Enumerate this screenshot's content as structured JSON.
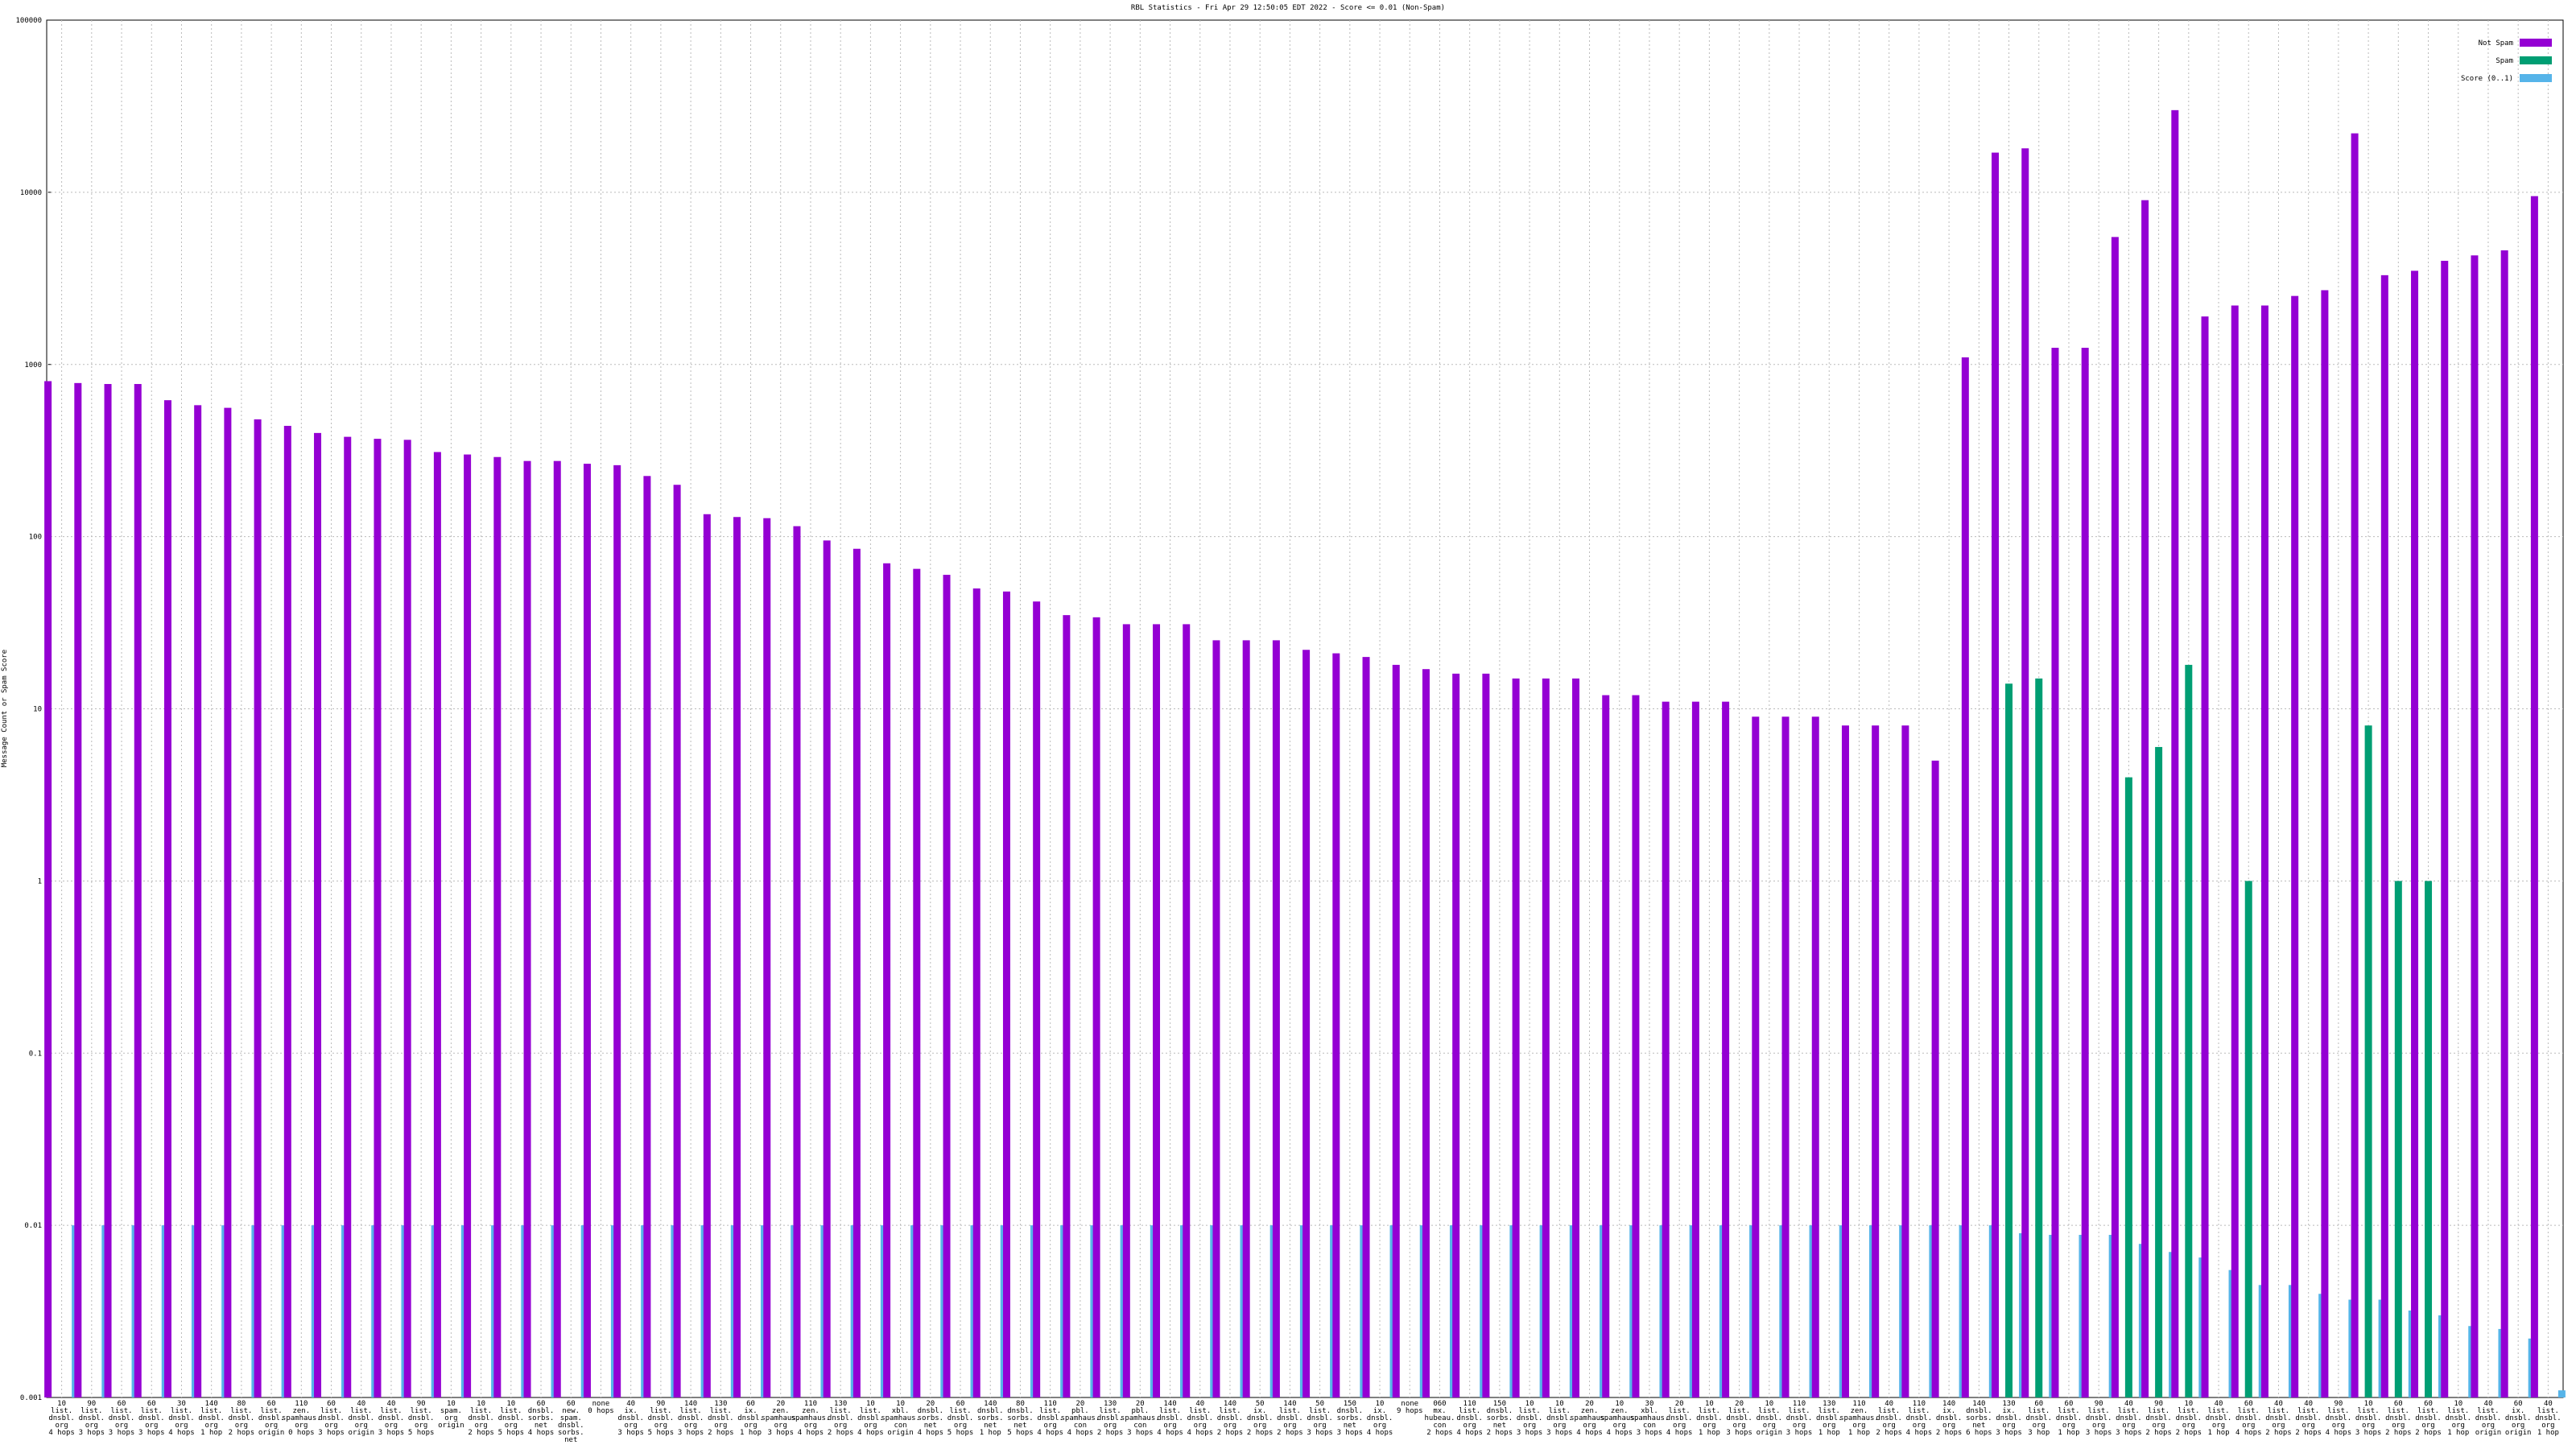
{
  "chart_data": {
    "type": "bar",
    "log_scale": true,
    "grid": true,
    "legend": "top-right",
    "title": "RBL Statistics - Fri Apr 29 12:50:05 EDT 2022 - Score <= 0.01 (Non-Spam)",
    "y_label": "Message Count or Spam Score",
    "ylim": [
      0.001,
      100000
    ],
    "yticks": [
      0.001,
      0.01,
      0.1,
      1,
      10,
      100,
      1000,
      10000,
      100000
    ],
    "categories": [
      "10\nlist.\ndnsbl.\norg\n4 hops",
      "90\nlist.\ndnsbl.\norg\n3 hops",
      "60\nlist.\ndnsbl.\norg\n3 hops",
      "60\nlist.\ndnsbl.\norg\n3 hops",
      "30\nlist.\ndnsbl.\norg\n4 hops",
      "140\nlist.\ndnsbl.\norg\n1 hop",
      "80\nlist.\ndnsbl.\norg\n2 hops",
      "60\nlist.\ndnsbl.\norg\norigin",
      "110\nzen.\nspamhaus.\norg\n0 hops",
      "60\nlist.\ndnsbl.\norg\n3 hops",
      "40\nlist.\ndnsbl.\norg\norigin",
      "40\nlist.\ndnsbl.\norg\n3 hops",
      "90\nlist.\ndnsbl.\norg\n5 hops",
      "10\nspam.\norg\norigin",
      "10\nlist.\ndnsbl.\norg\n2 hops",
      "10\nlist.\ndnsbl.\norg\n5 hops",
      "60\ndnsbl.\nsorbs.\nnet\n4 hops",
      "60\nnew.\nspam.\ndnsbl.\nsorbs.\nnet",
      "none\n0 hops",
      "40\nix.\ndnsbl.\norg\n3 hops",
      "90\nlist.\ndnsbl.\norg\n5 hops",
      "140\nlist.\ndnsbl.\norg\n3 hops",
      "130\nlist.\ndnsbl.\norg\n2 hops",
      "60\nix.\ndnsbl.\norg\n1 hop",
      "20\nzen.\nspamhaus.\norg\n3 hops",
      "110\nzen.\nspamhaus.\norg\n4 hops",
      "130\nlist.\ndnsbl.\norg\n2 hops",
      "10\nlist.\ndnsbl.\norg\n4 hops",
      "10\nxbl.\nspamhaus.\ncon\norigin",
      "20\ndnsbl.\nsorbs.\nnet\n4 hops",
      "60\nlist.\ndnsbl.\norg\n5 hops",
      "140\ndnsbl.\nsorbs.\nnet\n1 hop",
      "80\ndnsbl.\nsorbs.\nnet\n5 hops",
      "110\nlist.\ndnsbl.\norg\n4 hops",
      "20\npbl.\nspamhaus.\ncon\n4 hops",
      "130\nlist.\ndnsbl.\norg\n2 hops",
      "20\npbl.\nspamhaus.\ncon\n3 hops",
      "140\nlist.\ndnsbl.\norg\n4 hops",
      "40\nlist.\ndnsbl.\norg\n4 hops",
      "140\nlist.\ndnsbl.\norg\n2 hops",
      "50\nix.\ndnsbl.\norg\n2 hops",
      "140\nlist.\ndnsbl.\norg\n2 hops",
      "50\nlist.\ndnsbl.\norg\n3 hops",
      "150\ndnsbl.\nsorbs.\nnet\n3 hops",
      "10\nix.\ndnsbl.\norg\n4 hops",
      "none\n9 hops",
      "060\nmx.\nhubeau.\ncon\n2 hops",
      "110\nlist.\ndnsbl.\norg\n4 hops",
      "150\ndnsbl.\nsorbs.\nnet\n2 hops",
      "10\nlist.\ndnsbl.\norg\n3 hops",
      "10\nlist.\ndnsbl.\norg\n3 hops",
      "20\nzen.\nspamhaus.\norg\n4 hops",
      "10\nzen.\nspamhaus.\norg\n4 hops",
      "30\nxbl.\nspamhaus.\ncon\n3 hops",
      "20\nlist.\ndnsbl.\norg\n4 hops",
      "10\nlist.\ndnsbl.\norg\n1 hop",
      "20\nlist.\ndnsbl.\norg\n3 hops",
      "10\nlist.\ndnsbl.\norg\norigin",
      "110\nlist.\ndnsbl.\norg\n3 hops",
      "130\nlist.\ndnsbl.\norg\n1 hop",
      "110\nzen.\nspamhaus.\norg\n1 hop",
      "40\nlist.\ndnsbl.\norg\n2 hops",
      "110\nlist.\ndnsbl.\norg\n4 hops",
      "140\nix.\ndnsbl.\norg\n2 hops",
      "140\ndnsbl.\nsorbs.\nnet\n6 hops",
      "130\nix.\ndnsbl.\norg\n3 hops",
      "60\nlist.\ndnsbl.\norg\n3 hop",
      "60\nlist.\ndnsbl.\norg\n1 hop",
      "90\nlist.\ndnsbl.\norg\n3 hops",
      "40\nlist.\ndnsbl.\norg\n3 hops",
      "90\nlist.\ndnsbl.\norg\n2 hops",
      "10\nlist.\ndnsbl.\norg\n2 hops",
      "40\nlist.\ndnsbl.\norg\n1 hop",
      "60\nlist.\ndnsbl.\norg\n4 hops",
      "40\nlist.\ndnsbl.\norg\n2 hops",
      "40\nlist.\ndnsbl.\norg\n2 hops",
      "90\nlist.\ndnsbl.\norg\n4 hops",
      "10\nlist.\ndnsbl.\norg\n3 hops",
      "60\nlist.\ndnsbl.\norg\n2 hops",
      "60\nlist.\ndnsbl.\norg\n2 hops",
      "10\nlist.\ndnsbl.\norg\n1 hop",
      "40\nlist.\ndnsbl.\norg\norigin",
      "60\nix.\ndnsbl.\norg\norigin",
      "40\nlist.\ndnsbl.\norg\n1 hop"
    ],
    "series": [
      {
        "name": "Not Spam",
        "color": "#9400d3",
        "values": [
          800,
          780,
          770,
          770,
          620,
          580,
          560,
          480,
          440,
          400,
          380,
          370,
          365,
          310,
          300,
          290,
          275,
          275,
          265,
          260,
          225,
          200,
          135,
          130,
          128,
          115,
          95,
          85,
          70,
          65,
          60,
          50,
          48,
          42,
          35,
          34,
          31,
          31,
          31,
          25,
          25,
          25,
          22,
          21,
          20,
          18,
          17,
          16,
          16,
          15,
          15,
          15,
          12,
          12,
          11,
          11,
          11,
          9,
          9,
          9,
          8,
          8,
          8,
          5,
          1100,
          17000,
          18000,
          1250,
          1250,
          5500,
          9000,
          30000,
          1900,
          2200,
          2200,
          2500,
          2700,
          22000,
          3300,
          3500,
          4000,
          4300,
          4600,
          9500
        ]
      },
      {
        "name": "Spam",
        "color": "#009e73",
        "values": [
          null,
          null,
          null,
          null,
          null,
          null,
          null,
          null,
          null,
          null,
          null,
          null,
          null,
          null,
          null,
          null,
          null,
          null,
          null,
          null,
          null,
          null,
          null,
          null,
          null,
          null,
          null,
          null,
          null,
          null,
          null,
          null,
          null,
          null,
          null,
          null,
          null,
          null,
          null,
          null,
          null,
          null,
          null,
          null,
          null,
          null,
          null,
          null,
          null,
          null,
          null,
          null,
          null,
          null,
          null,
          null,
          null,
          null,
          null,
          null,
          null,
          null,
          null,
          null,
          null,
          14,
          15,
          null,
          null,
          4,
          6,
          18,
          null,
          1,
          null,
          null,
          null,
          8,
          1,
          1,
          null,
          null,
          null,
          null
        ]
      },
      {
        "name": "Score (0..1)",
        "color": "#56b4e9",
        "values": [
          0.01,
          0.01,
          0.01,
          0.01,
          0.01,
          0.01,
          0.01,
          0.01,
          0.01,
          0.01,
          0.01,
          0.01,
          0.01,
          0.01,
          0.01,
          0.01,
          0.01,
          0.01,
          0.01,
          0.01,
          0.01,
          0.01,
          0.01,
          0.01,
          0.01,
          0.01,
          0.01,
          0.01,
          0.01,
          0.01,
          0.01,
          0.01,
          0.01,
          0.01,
          0.01,
          0.01,
          0.01,
          0.01,
          0.01,
          0.01,
          0.01,
          0.01,
          0.01,
          0.01,
          0.01,
          0.01,
          0.01,
          0.01,
          0.01,
          0.01,
          0.01,
          0.01,
          0.01,
          0.01,
          0.01,
          0.01,
          0.01,
          0.01,
          0.01,
          0.01,
          0.01,
          0.01,
          0.01,
          0.01,
          0.01,
          0.009,
          0.0088,
          0.0088,
          0.0088,
          0.0078,
          0.007,
          0.0065,
          0.0055,
          0.0045,
          0.0045,
          0.004,
          0.0037,
          0.0037,
          0.0032,
          0.003,
          0.0026,
          0.0025,
          0.0022,
          0.0011
        ]
      }
    ]
  }
}
